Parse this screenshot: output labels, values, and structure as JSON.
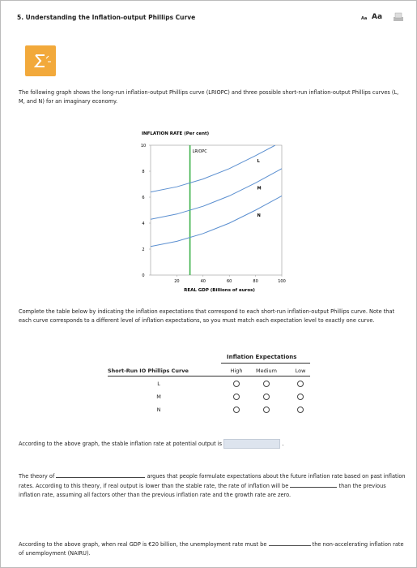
{
  "header": {
    "title": "5. Understanding the Inflation-output Phillips Curve",
    "font_small": "Aa",
    "font_large": "Aa"
  },
  "intro": "The following graph shows the long-run inflation-output Phillips curve (LRIOPC) and three possible short-run inflation-output Phillips curves (L, M, and N) for an imaginary economy.",
  "chart": {
    "type": "line",
    "y_label": "INFLATION RATE (Per cent)",
    "x_label": "REAL GDP (Billions of euros)",
    "xlim": [
      0,
      100
    ],
    "ylim": [
      0,
      10
    ],
    "xticks": [
      20,
      40,
      60,
      80,
      100
    ],
    "yticks": [
      0,
      2,
      4,
      6,
      8,
      10
    ],
    "lriopc": {
      "name": "LRIOPC",
      "x": 30,
      "color": "#3cb04a"
    },
    "series": [
      {
        "name": "L",
        "color": "#5b8fd0",
        "x": [
          0,
          20,
          40,
          60,
          80,
          95
        ],
        "values": [
          6.4,
          6.8,
          7.4,
          8.2,
          9.2,
          10
        ]
      },
      {
        "name": "M",
        "color": "#5b8fd0",
        "x": [
          0,
          20,
          40,
          60,
          80,
          100
        ],
        "values": [
          4.3,
          4.7,
          5.3,
          6.1,
          7.1,
          8.2
        ]
      },
      {
        "name": "N",
        "color": "#5b8fd0",
        "x": [
          0,
          20,
          40,
          60,
          80,
          100
        ],
        "values": [
          2.2,
          2.6,
          3.2,
          4.0,
          5.0,
          6.1
        ]
      }
    ]
  },
  "instructions": "Complete the table below by indicating the inflation expectations that correspond to each short-run inflation-output Phillips curve. Note that each curve corresponds to a different level of inflation expectations, so you must match each expectation level to exactly one curve.",
  "table": {
    "group_header": "Inflation Expectations",
    "row_header": "Short-Run IO Phillips Curve",
    "columns": [
      "High",
      "Medium",
      "Low"
    ],
    "rows": [
      "L",
      "M",
      "N"
    ]
  },
  "questions": [
    {
      "parts": [
        "According to the above graph, the stable inflation rate at potential output is",
        "."
      ]
    },
    {
      "parts": [
        "The theory of",
        "argues that people formulate expectations about the future inflation rate based on past inflation rates. According to this theory, if real output is lower than the stable rate, the rate of inflation will be",
        "than the previous inflation rate, assuming all factors other than the previous inflation rate and the growth rate are zero."
      ]
    },
    {
      "parts": [
        "According to the above graph, when real GDP is €20 billion, the unemployment rate must be",
        "the non-accelerating inflation rate of unemployment (NAIRU)."
      ]
    }
  ]
}
